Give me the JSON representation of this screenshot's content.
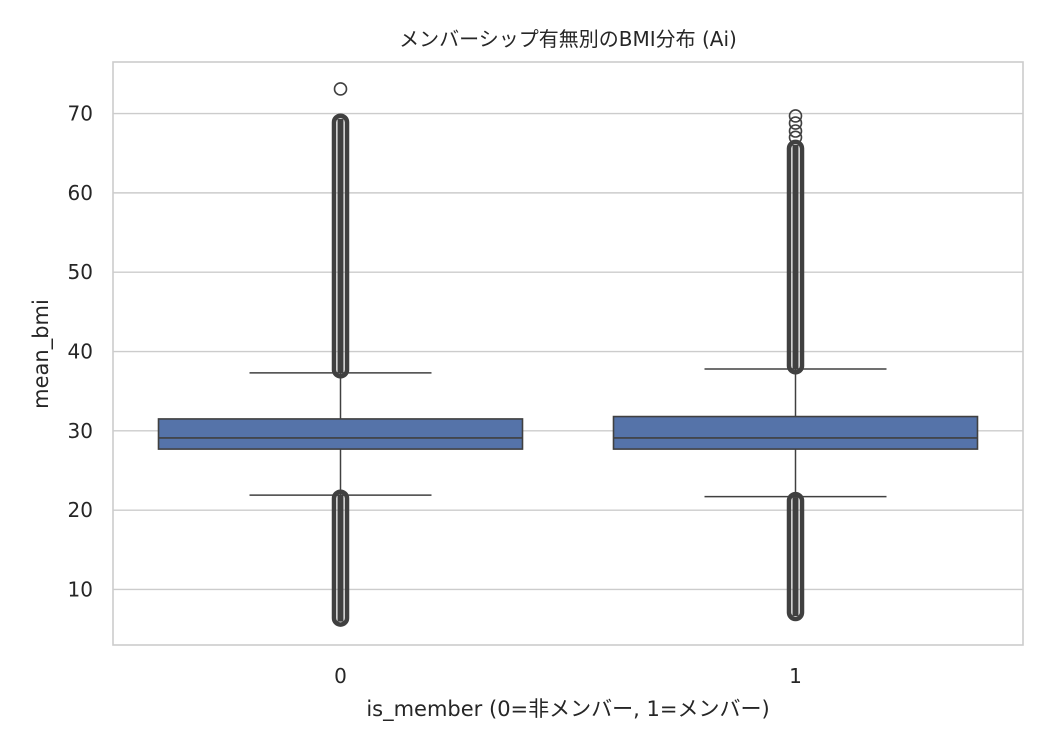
{
  "chart_data": {
    "type": "box",
    "title": "メンバーシップ有無別のBMI分布 (Ai)",
    "xlabel": "is_member (0=非メンバー, 1=メンバー)",
    "ylabel": "mean_bmi",
    "categories": [
      "0",
      "1"
    ],
    "ylim": [
      3,
      76.5
    ],
    "yticks": [
      10,
      20,
      30,
      40,
      50,
      60,
      70
    ],
    "grid": "horizontal",
    "colors": {
      "box_fill": "#5573a9",
      "box_edge": "#404040",
      "grid": "#cccccc",
      "frame": "#cccccc"
    },
    "boxes": [
      {
        "category": "0",
        "whisker_low": 21.9,
        "q1": 27.7,
        "median": 29.1,
        "q3": 31.5,
        "whisker_high": 37.3,
        "outlier_bands": [
          [
            5.7,
            22.2
          ],
          [
            37.0,
            69.6
          ]
        ],
        "outliers": [
          73.1
        ]
      },
      {
        "category": "1",
        "whisker_low": 21.7,
        "q1": 27.7,
        "median": 29.1,
        "q3": 31.8,
        "whisker_high": 37.8,
        "outlier_bands": [
          [
            6.4,
            21.9
          ],
          [
            37.5,
            66.3
          ]
        ],
        "outliers": [
          67.0,
          67.8,
          68.8,
          69.7
        ]
      }
    ]
  }
}
